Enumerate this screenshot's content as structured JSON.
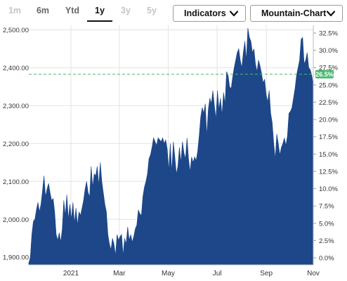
{
  "toolbar": {
    "ranges": [
      {
        "label": "1m",
        "state": "disabled"
      },
      {
        "label": "6m",
        "state": "normal"
      },
      {
        "label": "Ytd",
        "state": "normal"
      },
      {
        "label": "1y",
        "state": "active"
      },
      {
        "label": "3y",
        "state": "disabled"
      },
      {
        "label": "5y",
        "state": "disabled"
      }
    ],
    "indicators_label": "Indicators",
    "chart_type_label": "Mountain-Chart"
  },
  "colors": {
    "area": "#1d4789",
    "reference_line": "#4cb870",
    "badge": "#4cb870",
    "grid": "#e3e3e3"
  },
  "chart_data": {
    "type": "area",
    "title": "",
    "xlabel": "",
    "ylabel": "",
    "grid": true,
    "y_left": {
      "ticks": [
        "1,900.00",
        "2,000.00",
        "2,100.00",
        "2,200.00",
        "2,300.00",
        "2,400.00",
        "2,500.00"
      ],
      "range": [
        1880,
        2512
      ]
    },
    "y_right": {
      "ticks": [
        "0.0%",
        "2.5%",
        "5.0%",
        "7.5%",
        "10.0%",
        "12.5%",
        "15.0%",
        "17.5%",
        "20.0%",
        "22.5%",
        "25.0%",
        "27.5%",
        "30.0%",
        "32.5%"
      ]
    },
    "x_ticks": [
      {
        "label": "2021",
        "pos": 0.148
      },
      {
        "label": "Mar",
        "pos": 0.318
      },
      {
        "label": "May",
        "pos": 0.49
      },
      {
        "label": "Jul",
        "pos": 0.662
      },
      {
        "label": "Sep",
        "pos": 0.835
      },
      {
        "label": "Nov",
        "pos": 1.0
      }
    ],
    "reference_value": 2383,
    "current_change_label": "26.5%",
    "series": [
      {
        "values": [
          1885,
          1900,
          1960,
          1995,
          2000,
          2025,
          2045,
          2020,
          2040,
          2075,
          2115,
          2060,
          2080,
          2095,
          2070,
          2050,
          2055,
          2020,
          1960,
          1945,
          1965,
          1940,
          1975,
          2050,
          2010,
          2065,
          2000,
          2040,
          2000,
          2045,
          1990,
          2030,
          1985,
          2020,
          2010,
          2030,
          2050,
          2080,
          2100,
          2070,
          2060,
          2140,
          2085,
          2120,
          2115,
          2140,
          2090,
          2150,
          2100,
          2070,
          2040,
          2020,
          1960,
          1935,
          1920,
          1950,
          1935,
          1905,
          1960,
          1945,
          1955,
          1960,
          1905,
          1950,
          1935,
          1980,
          1945,
          1960,
          1940,
          1955,
          1975,
          1985,
          2025,
          2015,
          2010,
          2060,
          2085,
          2100,
          2120,
          2160,
          2170,
          2190,
          2215,
          2205,
          2195,
          2215,
          2210,
          2205,
          2215,
          2200,
          2210,
          2185,
          2130,
          2200,
          2125,
          2205,
          2165,
          2120,
          2140,
          2190,
          2150,
          2205,
          2175,
          2160,
          2215,
          2160,
          2125,
          2165,
          2150,
          2165,
          2155,
          2180,
          2220,
          2270,
          2295,
          2280,
          2305,
          2220,
          2290,
          2320,
          2305,
          2340,
          2300,
          2265,
          2340,
          2290,
          2320,
          2275,
          2335,
          2305,
          2390,
          2380,
          2350,
          2345,
          2375,
          2400,
          2420,
          2440,
          2450,
          2420,
          2400,
          2440,
          2470,
          2420,
          2505,
          2480,
          2470,
          2440,
          2450,
          2410,
          2390,
          2420,
          2405,
          2385,
          2360,
          2370,
          2330,
          2310,
          2340,
          2280,
          2255,
          2200,
          2160,
          2225,
          2200,
          2170,
          2190,
          2200,
          2215,
          2195,
          2220,
          2280,
          2285,
          2295,
          2320,
          2345,
          2380,
          2400,
          2420,
          2475,
          2480,
          2410,
          2420,
          2440,
          2400,
          2395,
          2380,
          2355
        ]
      }
    ]
  }
}
